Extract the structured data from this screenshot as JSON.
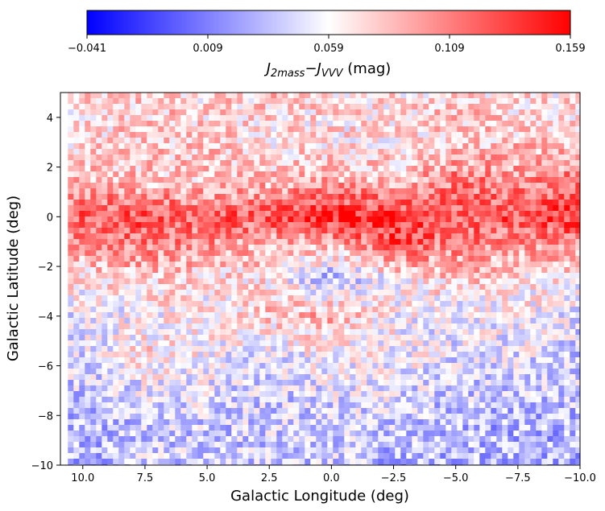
{
  "chart_data": {
    "type": "heatmap",
    "xlabel": "Galactic Longitude (deg)",
    "ylabel": "Galactic Latitude (deg)",
    "xlim": [
      10.9,
      -10
    ],
    "ylim": [
      -10,
      5
    ],
    "xticks": [
      "10.0",
      "7.5",
      "5.0",
      "2.5",
      "0.0",
      "−2.5",
      "−5.0",
      "−7.5",
      "−10.0"
    ],
    "xtick_values": [
      10,
      7.5,
      5,
      2.5,
      0,
      -2.5,
      -5,
      -7.5,
      -10
    ],
    "yticks": [
      "4",
      "2",
      "0",
      "−2",
      "−4",
      "−6",
      "−8",
      "−10"
    ],
    "ytick_values": [
      4,
      2,
      0,
      -2,
      -4,
      -6,
      -8,
      -10
    ],
    "colorbar": {
      "label_main": "J",
      "label_sub1": "2mass",
      "label_minus": "−",
      "label_sub2": "VVV",
      "label_unit": " (mag)",
      "range": [
        -0.041,
        0.159
      ],
      "ticks": [
        "−0.041",
        "0.009",
        "0.059",
        "0.109",
        "0.159"
      ],
      "tick_values": [
        -0.041,
        0.009,
        0.059,
        0.109,
        0.159
      ],
      "colormap": "bwr"
    },
    "grid_l": [
      10,
      7.5,
      5,
      2.5,
      0,
      -2.5,
      -5,
      -7.5,
      -10
    ],
    "grid_b": [
      5,
      3,
      1.5,
      0,
      -1,
      -2.5,
      -4,
      -5.5,
      -7,
      -8.5,
      -10
    ],
    "mean_values": [
      [
        0.07,
        0.08,
        0.07,
        0.08,
        0.07,
        0.07,
        0.08,
        0.07,
        0.07
      ],
      [
        0.07,
        0.08,
        0.08,
        0.07,
        0.07,
        0.07,
        0.08,
        0.08,
        0.08
      ],
      [
        0.09,
        0.08,
        0.08,
        0.08,
        0.09,
        0.08,
        0.11,
        0.1,
        0.11
      ],
      [
        0.12,
        0.13,
        0.12,
        0.13,
        0.15,
        0.14,
        0.12,
        0.13,
        0.14
      ],
      [
        0.1,
        0.11,
        0.1,
        0.09,
        0.09,
        0.13,
        0.11,
        0.1,
        0.11
      ],
      [
        0.07,
        0.08,
        0.07,
        0.07,
        0.03,
        0.06,
        0.08,
        0.07,
        0.06
      ],
      [
        0.05,
        0.06,
        0.06,
        0.08,
        0.09,
        0.06,
        0.05,
        0.06,
        0.05
      ],
      [
        0.05,
        0.07,
        0.06,
        0.05,
        0.06,
        0.06,
        0.05,
        0.05,
        0.04
      ],
      [
        0.04,
        0.05,
        0.05,
        0.04,
        0.05,
        0.05,
        0.04,
        0.04,
        0.04
      ],
      [
        0.03,
        0.04,
        0.04,
        0.04,
        0.04,
        0.04,
        0.03,
        0.03,
        0.03
      ],
      [
        0.03,
        0.04,
        0.04,
        0.04,
        0.04,
        0.03,
        0.03,
        0.03,
        0.03
      ]
    ],
    "data_l_range": [
      10.6,
      -10
    ]
  }
}
